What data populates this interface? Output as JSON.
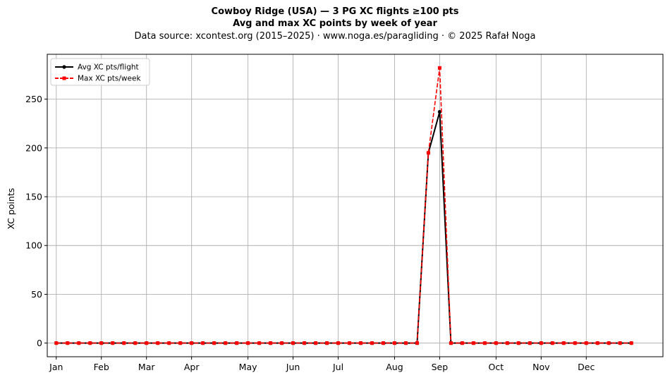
{
  "header": {
    "title_line1": "Cowboy Ridge (USA)  —  3 PG XC flights ≥100 pts",
    "title_line2": "Avg and max XC points by week of year",
    "subtitle": "Data source: xcontest.org (2015–2025)  ·  www.noga.es/paragliding  ·  © 2025 Rafał Noga"
  },
  "chart_data": {
    "type": "line",
    "ylabel": "XC points",
    "xlabel": "",
    "xlim": [
      0.2,
      54.8
    ],
    "ylim": [
      -14,
      296
    ],
    "yticks": [
      0,
      50,
      100,
      150,
      200,
      250
    ],
    "grid": true,
    "legend_position": "top-left",
    "months": [
      {
        "label": "Jan",
        "week": 1
      },
      {
        "label": "Feb",
        "week": 5
      },
      {
        "label": "Mar",
        "week": 9
      },
      {
        "label": "Apr",
        "week": 13
      },
      {
        "label": "May",
        "week": 18
      },
      {
        "label": "Jun",
        "week": 22
      },
      {
        "label": "Jul",
        "week": 26
      },
      {
        "label": "Aug",
        "week": 31
      },
      {
        "label": "Sep",
        "week": 35
      },
      {
        "label": "Oct",
        "week": 40
      },
      {
        "label": "Nov",
        "week": 44
      },
      {
        "label": "Dec",
        "week": 48
      }
    ],
    "weeks": [
      1,
      2,
      3,
      4,
      5,
      6,
      7,
      8,
      9,
      10,
      11,
      12,
      13,
      14,
      15,
      16,
      17,
      18,
      19,
      20,
      21,
      22,
      23,
      24,
      25,
      26,
      27,
      28,
      29,
      30,
      31,
      32,
      33,
      34,
      35,
      36,
      37,
      38,
      39,
      40,
      41,
      42,
      43,
      44,
      45,
      46,
      47,
      48,
      49,
      50,
      51,
      52
    ],
    "series": [
      {
        "name": "Avg XC pts/flight",
        "color": "#000000",
        "style": "solid",
        "marker": "circle",
        "values": [
          0,
          0,
          0,
          0,
          0,
          0,
          0,
          0,
          0,
          0,
          0,
          0,
          0,
          0,
          0,
          0,
          0,
          0,
          0,
          0,
          0,
          0,
          0,
          0,
          0,
          0,
          0,
          0,
          0,
          0,
          0,
          0,
          0,
          195,
          237,
          0,
          0,
          0,
          0,
          0,
          0,
          0,
          0,
          0,
          0,
          0,
          0,
          0,
          0,
          0,
          0,
          0
        ]
      },
      {
        "name": "Max XC pts/week",
        "color": "#ff0000",
        "style": "dashed",
        "marker": "square",
        "values": [
          0,
          0,
          0,
          0,
          0,
          0,
          0,
          0,
          0,
          0,
          0,
          0,
          0,
          0,
          0,
          0,
          0,
          0,
          0,
          0,
          0,
          0,
          0,
          0,
          0,
          0,
          0,
          0,
          0,
          0,
          0,
          0,
          0,
          195,
          282,
          0,
          0,
          0,
          0,
          0,
          0,
          0,
          0,
          0,
          0,
          0,
          0,
          0,
          0,
          0,
          0,
          0
        ]
      }
    ]
  }
}
